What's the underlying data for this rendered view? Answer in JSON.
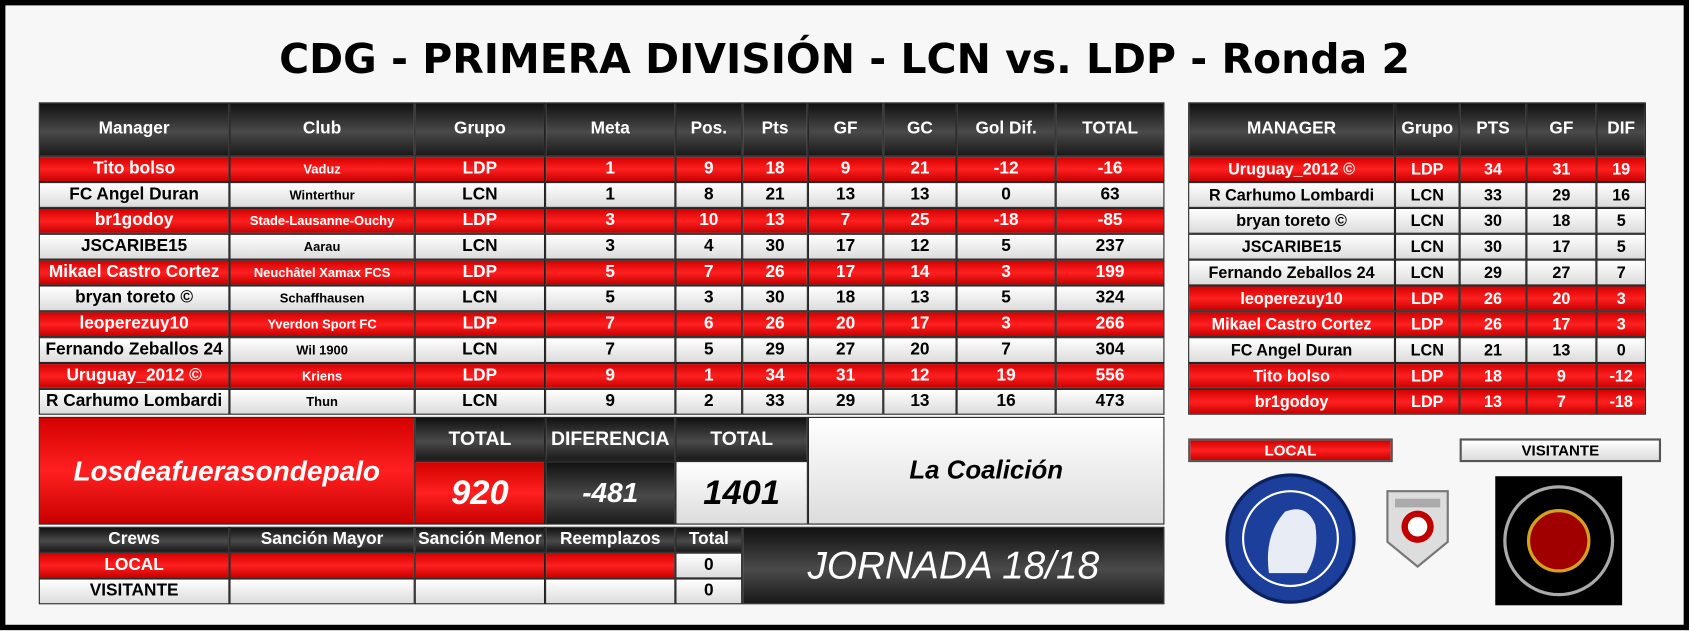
{
  "title": "CDG - PRIMERA DIVISIÓN - LCN vs. LDP - Ronda 2",
  "main_table": {
    "headers": [
      "Manager",
      "Club",
      "Grupo",
      "Meta",
      "Pos.",
      "Pts",
      "GF",
      "GC",
      "Gol Dif.",
      "TOTAL"
    ],
    "rows": [
      [
        "Tito bolso",
        "Vaduz",
        "LDP",
        1,
        9,
        18,
        9,
        21,
        -12,
        -16
      ],
      [
        "FC Angel Duran",
        "Winterthur",
        "LCN",
        1,
        8,
        21,
        13,
        13,
        0,
        63
      ],
      [
        "br1godoy",
        "Stade-Lausanne-Ouchy",
        "LDP",
        3,
        10,
        13,
        7,
        25,
        -18,
        -85
      ],
      [
        "JSCARIBE15",
        "Aarau",
        "LCN",
        3,
        4,
        30,
        17,
        12,
        5,
        237
      ],
      [
        "Mikael Castro Cortez",
        "Neuchâtel Xamax FCS",
        "LDP",
        5,
        7,
        26,
        17,
        14,
        3,
        199
      ],
      [
        "bryan toreto ©",
        "Schaffhausen",
        "LCN",
        5,
        3,
        30,
        18,
        13,
        5,
        324
      ],
      [
        "leoperezuy10",
        "Yverdon Sport FC",
        "LDP",
        7,
        6,
        26,
        20,
        17,
        3,
        266
      ],
      [
        "Fernando Zeballos 24",
        "Wil 1900",
        "LCN",
        7,
        5,
        29,
        27,
        20,
        7,
        304
      ],
      [
        "Uruguay_2012 ©",
        "Kriens",
        "LDP",
        9,
        1,
        34,
        31,
        12,
        19,
        556
      ],
      [
        "R Carhumo Lombardi",
        "Thun",
        "LCN",
        9,
        2,
        33,
        29,
        13,
        16,
        473
      ]
    ]
  },
  "summary": {
    "local_name": "Losdeafuerasondepalo",
    "local_total_label": "TOTAL",
    "local_total": 920,
    "difference_label": "DIFERENCIA",
    "difference": -481,
    "visitor_total_label": "TOTAL",
    "visitor_total": 1401,
    "visitor_name": "La Coalición"
  },
  "crews": {
    "headers": [
      "Crews",
      "Sanción Mayor",
      "Sanción Menor",
      "Reemplazos",
      "Total"
    ],
    "rows": [
      {
        "label": "LOCAL",
        "total": 0
      },
      {
        "label": "VISITANTE",
        "total": 0
      }
    ]
  },
  "jornada": "JORNADA 18/18",
  "standings": {
    "headers": [
      "MANAGER",
      "Grupo",
      "PTS",
      "GF",
      "DIF"
    ],
    "rows": [
      [
        "Uruguay_2012 ©",
        "LDP",
        34,
        31,
        19
      ],
      [
        "R Carhumo Lombardi",
        "LCN",
        33,
        29,
        16
      ],
      [
        "bryan toreto ©",
        "LCN",
        30,
        18,
        5
      ],
      [
        "JSCARIBE15",
        "LCN",
        30,
        17,
        5
      ],
      [
        "Fernando Zeballos 24",
        "LCN",
        29,
        27,
        7
      ],
      [
        "leoperezuy10",
        "LDP",
        26,
        20,
        3
      ],
      [
        "Mikael Castro Cortez",
        "LDP",
        26,
        17,
        3
      ],
      [
        "FC Angel Duran",
        "LCN",
        21,
        13,
        0
      ],
      [
        "Tito bolso",
        "LDP",
        18,
        9,
        -12
      ],
      [
        "br1godoy",
        "LDP",
        13,
        7,
        -18
      ]
    ]
  },
  "legend": {
    "local": "LOCAL",
    "visitor": "VISITANTE"
  }
}
